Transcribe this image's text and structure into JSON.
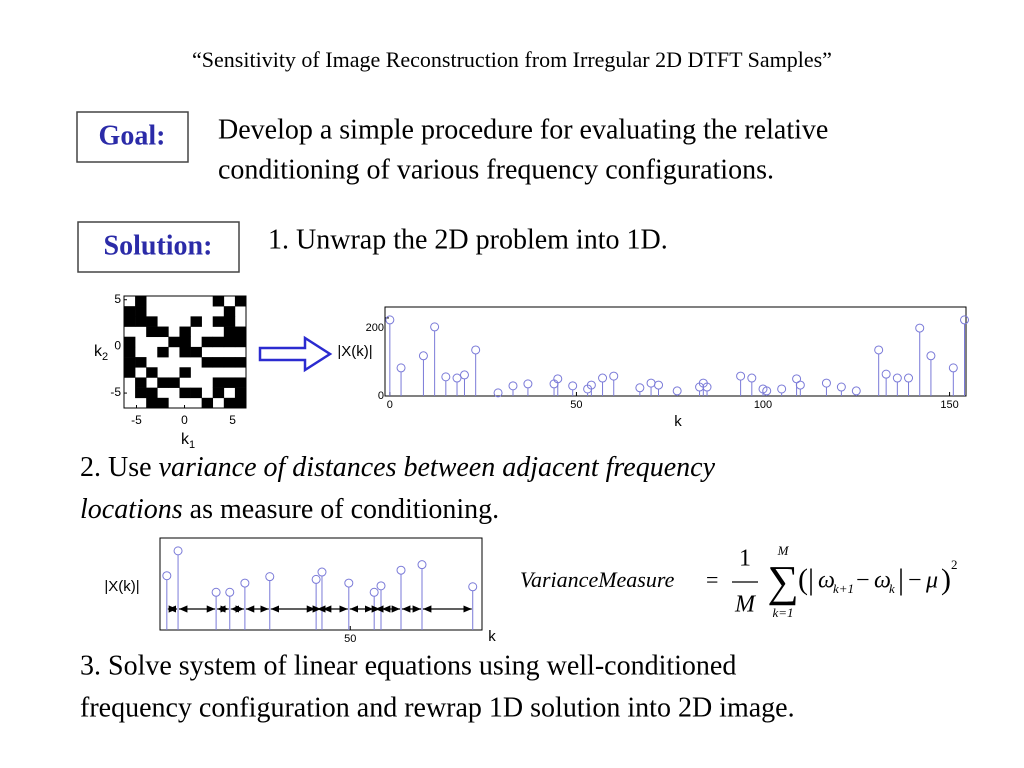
{
  "title": "“Sensitivity of Image Reconstruction from Irregular 2D DTFT Samples”",
  "goal": {
    "label": "Goal:",
    "lines": [
      "Develop a simple procedure for evaluating the relative",
      "conditioning of various frequency configurations."
    ]
  },
  "solution": {
    "label": "Solution:",
    "step1": "1. Unwrap the 2D problem into 1D."
  },
  "image": {
    "xlim": [
      -6.3,
      6.4
    ],
    "ylim": [
      -6.6,
      5.4
    ],
    "xticks": [
      -5,
      0,
      5
    ],
    "yticks": [
      5,
      0,
      -5
    ],
    "xlabel": {
      "base": "k",
      "sub": "1"
    },
    "ylabel": {
      "base": "k",
      "sub": "2"
    },
    "color": "#000000",
    "cells": [
      [
        0,
        1,
        0,
        0,
        0,
        0,
        0,
        0,
        1,
        0,
        1
      ],
      [
        1,
        1,
        0,
        0,
        0,
        0,
        0,
        0,
        0,
        1,
        0
      ],
      [
        1,
        1,
        1,
        0,
        0,
        0,
        1,
        0,
        1,
        1,
        0
      ],
      [
        0,
        0,
        1,
        1,
        0,
        1,
        0,
        0,
        0,
        1,
        1
      ],
      [
        1,
        0,
        0,
        0,
        1,
        1,
        0,
        1,
        1,
        1,
        1
      ],
      [
        1,
        0,
        0,
        1,
        0,
        1,
        1,
        0,
        0,
        0,
        0
      ],
      [
        1,
        1,
        0,
        0,
        0,
        0,
        0,
        1,
        1,
        1,
        1
      ],
      [
        1,
        0,
        1,
        0,
        0,
        1,
        0,
        0,
        0,
        0,
        0
      ],
      [
        0,
        1,
        0,
        1,
        1,
        0,
        0,
        0,
        1,
        1,
        1
      ],
      [
        0,
        1,
        1,
        0,
        0,
        1,
        1,
        0,
        1,
        0,
        1
      ],
      [
        0,
        0,
        1,
        1,
        0,
        0,
        0,
        1,
        0,
        1,
        1
      ]
    ]
  },
  "chart_data": [
    {
      "type": "stem",
      "ylabel": "|X(k)|",
      "xlabel": "k",
      "xlim": [
        -1.3,
        154.4
      ],
      "ylim": [
        0,
        228
      ],
      "xticks": [
        0,
        50,
        100,
        150
      ],
      "yticks": [
        0,
        200
      ],
      "color": "#7a7ad8",
      "x": [
        0,
        3,
        9,
        12,
        15,
        18,
        20,
        23,
        29,
        33,
        37,
        44,
        45,
        49,
        53,
        54,
        57,
        60,
        67,
        70,
        72,
        77,
        83,
        84,
        85,
        94,
        97,
        100,
        101,
        105,
        109,
        110,
        117,
        121,
        125,
        131,
        133,
        136,
        139,
        142,
        145,
        151,
        154
      ],
      "values": [
        195,
        72,
        103,
        177,
        49,
        46,
        54,
        118,
        8,
        26,
        31,
        31,
        44,
        26,
        18,
        28,
        46,
        51,
        21,
        33,
        28,
        13,
        23,
        33,
        23,
        51,
        46,
        18,
        13,
        18,
        44,
        28,
        33,
        23,
        13,
        118,
        56,
        46,
        46,
        174,
        103,
        72,
        195
      ]
    },
    {
      "type": "stem",
      "ylabel": "|X(k)|",
      "xlabel": "k",
      "xlim": [
        11,
        77
      ],
      "ylim": [
        0,
        100
      ],
      "xticks": [
        50
      ],
      "color": "#7a7ad8",
      "x": [
        12.4,
        14.7,
        22.5,
        25.3,
        28.4,
        33.5,
        43,
        44.2,
        49.7,
        54.9,
        56.3,
        60.4,
        64.7,
        75.1
      ],
      "values": [
        59,
        86,
        41,
        41,
        51,
        58,
        55,
        63,
        51,
        41,
        48,
        65,
        71,
        47
      ]
    }
  ],
  "step2": [
    [
      {
        "text": "2. Use ",
        "italic": false
      },
      {
        "text": "variance of distances between adjacent frequency",
        "italic": true
      }
    ],
    [
      {
        "text": "locations",
        "italic": true
      },
      {
        "text": " as measure of conditioning.",
        "italic": false
      }
    ]
  ],
  "formula": {
    "lhs": "VarianceMeasure",
    "eq": "=",
    "num": "1",
    "den": "M",
    "sum": "∑",
    "sum_top": "M",
    "sum_bottom": "k=1",
    "body": [
      {
        "t": "(",
        "r": "big"
      },
      {
        "t": "|",
        "r": "big"
      },
      {
        "t": "ω",
        "r": "base"
      },
      {
        "t": "k+1",
        "r": "sub"
      },
      {
        "t": "−",
        "r": "op"
      },
      {
        "t": "ω",
        "r": "base"
      },
      {
        "t": "k",
        "r": "sub"
      },
      {
        "t": "|",
        "r": "big"
      },
      {
        "t": "−",
        "r": "op"
      },
      {
        "t": "μ",
        "r": "base"
      },
      {
        "t": ")",
        "r": "big"
      },
      {
        "t": "2",
        "r": "sup"
      }
    ]
  },
  "step3": [
    "3. Solve system of linear equations using well-conditioned",
    "frequency configuration and rewrap 1D solution into 2D image."
  ]
}
